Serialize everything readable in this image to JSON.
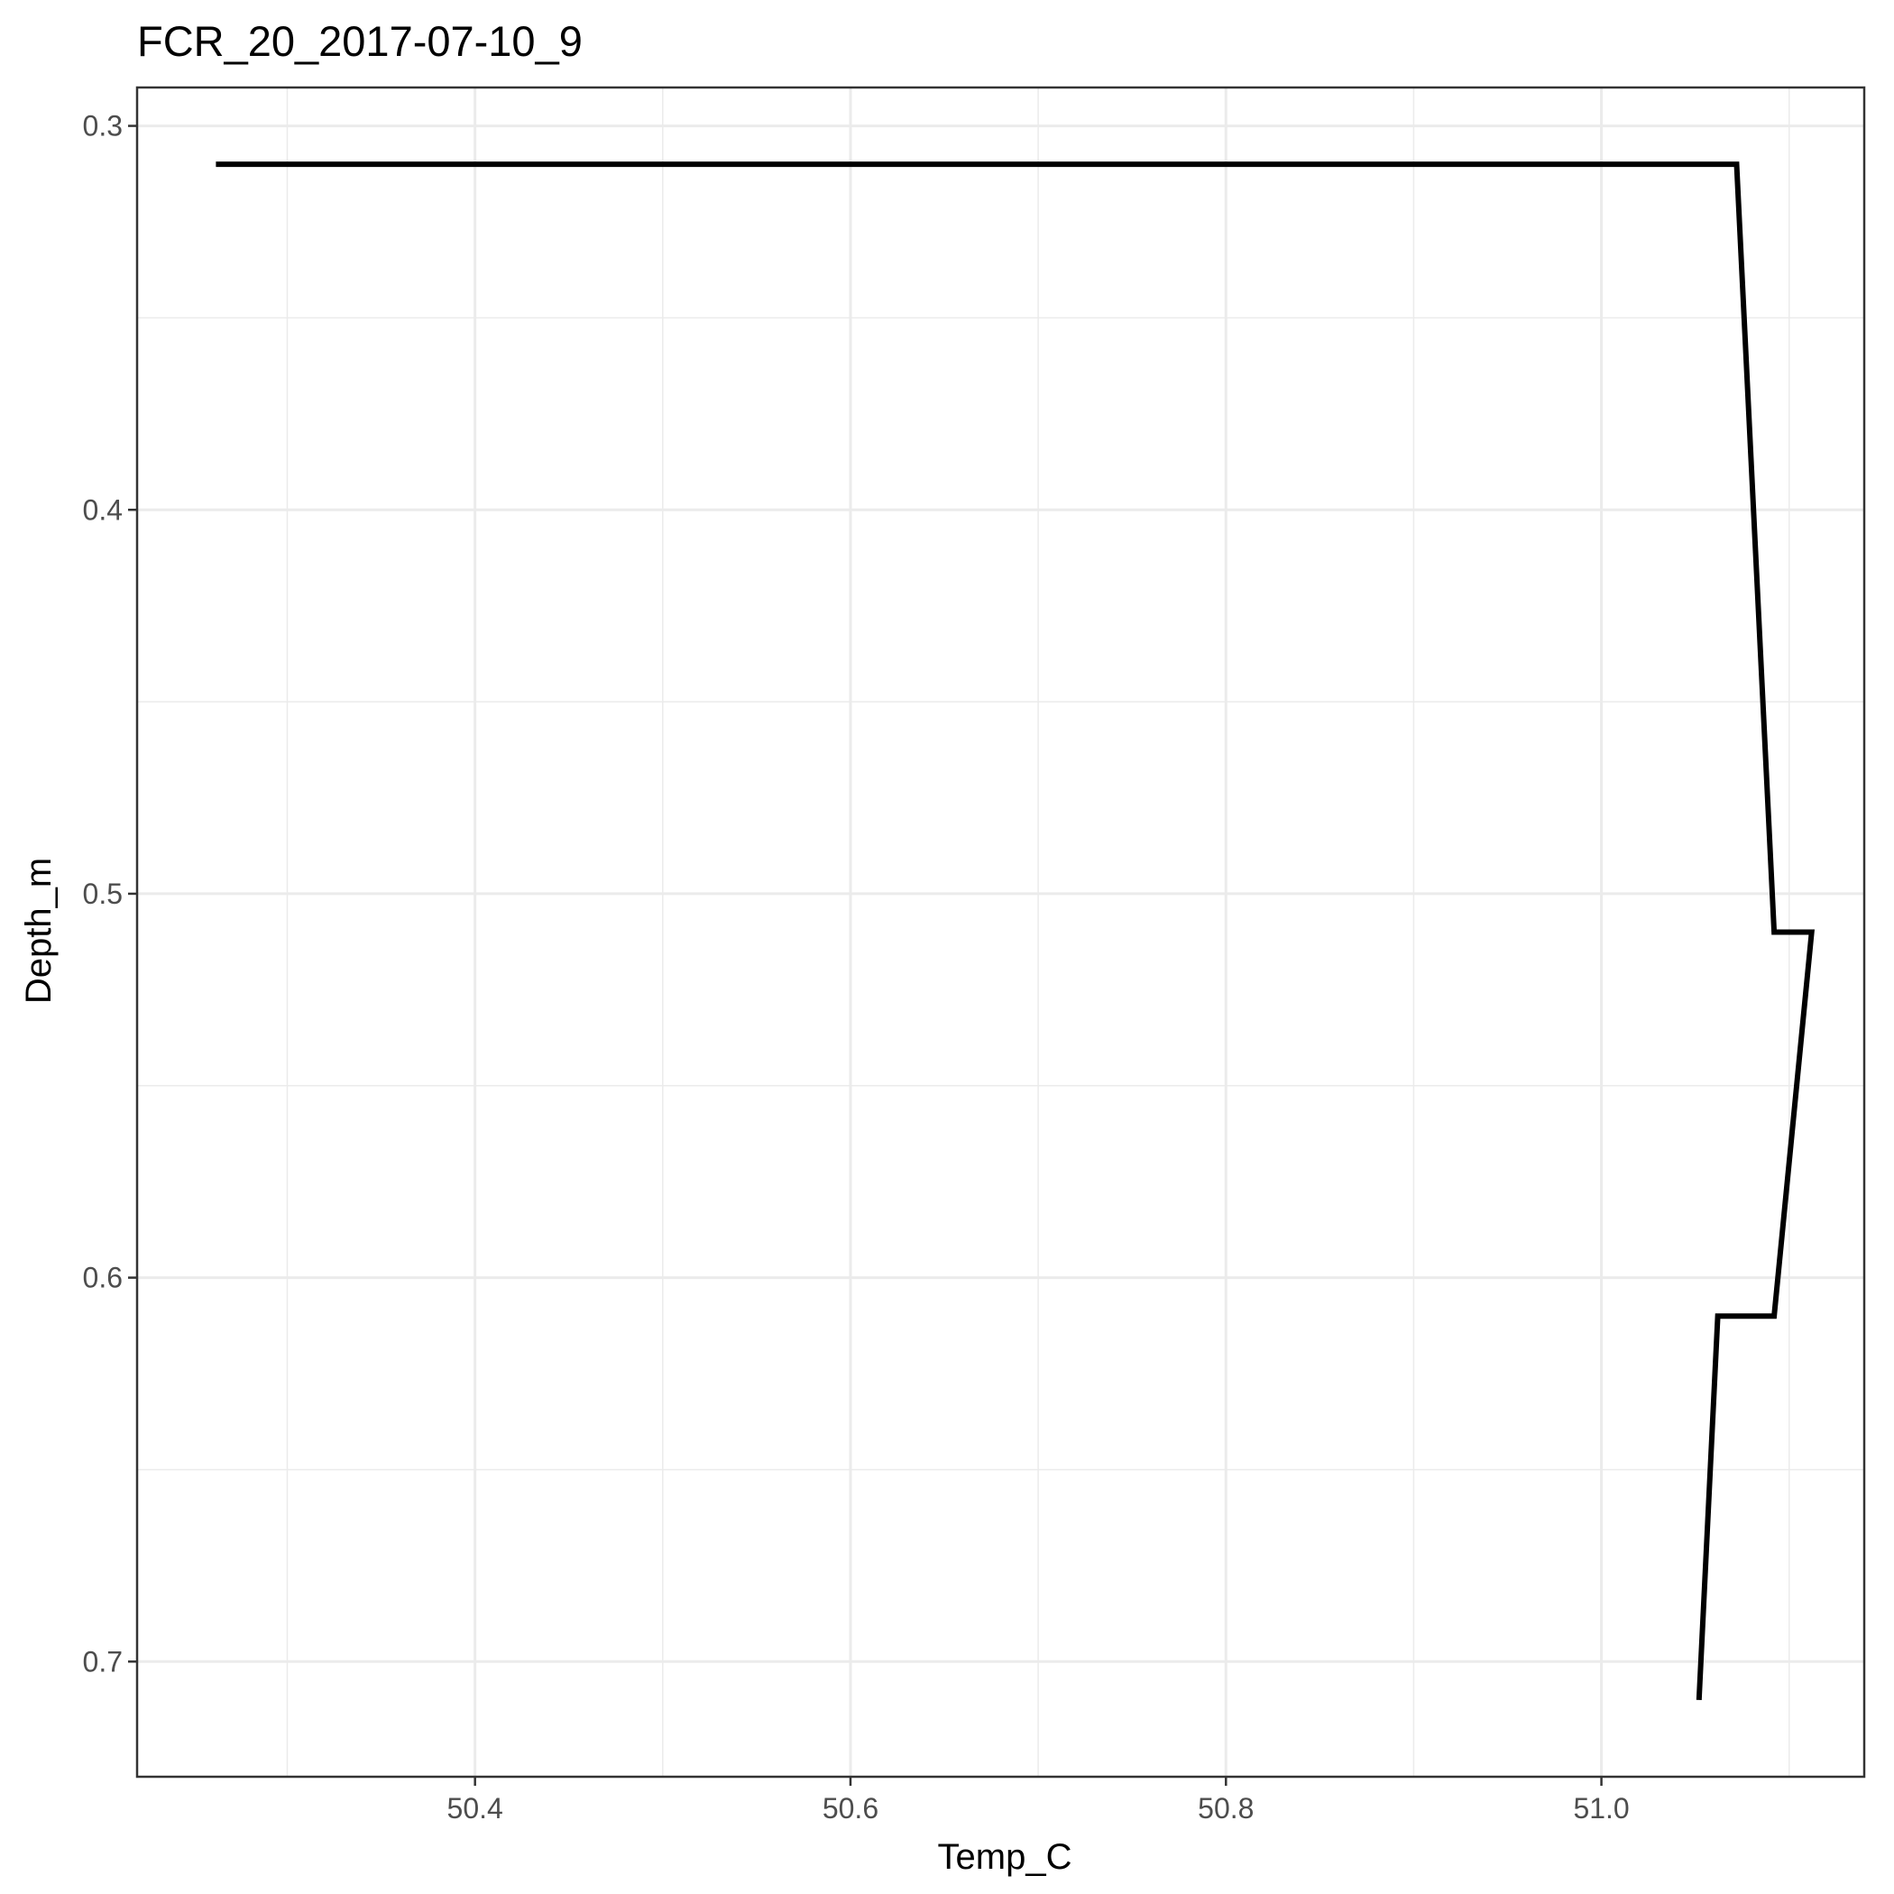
{
  "chart_data": {
    "type": "line",
    "title": "FCR_20_2017-07-10_9",
    "xlabel": "Temp_C",
    "ylabel": "Depth_m",
    "xlim": [
      50.22,
      51.14
    ],
    "ylim": [
      0.29,
      0.73
    ],
    "y_reversed": true,
    "grid": true,
    "x_ticks": [
      50.4,
      50.6,
      50.8,
      51.0
    ],
    "x_tick_labels": [
      "50.4",
      "50.6",
      "50.8",
      "51.0"
    ],
    "y_ticks": [
      0.3,
      0.4,
      0.5,
      0.6,
      0.7
    ],
    "y_tick_labels": [
      "0.3",
      "0.4",
      "0.5",
      "0.6",
      "0.7"
    ],
    "x_minor_ticks": [
      50.3,
      50.5,
      50.7,
      50.9,
      51.1
    ],
    "y_minor_ticks": [
      0.35,
      0.45,
      0.55,
      0.65
    ],
    "series": [
      {
        "color": "#000000",
        "points": [
          {
            "x": 50.262,
            "y": 0.31
          },
          {
            "x": 51.072,
            "y": 0.31
          },
          {
            "x": 51.092,
            "y": 0.51
          },
          {
            "x": 51.112,
            "y": 0.51
          },
          {
            "x": 51.092,
            "y": 0.61
          },
          {
            "x": 51.062,
            "y": 0.61
          },
          {
            "x": 51.052,
            "y": 0.71
          }
        ]
      }
    ]
  }
}
